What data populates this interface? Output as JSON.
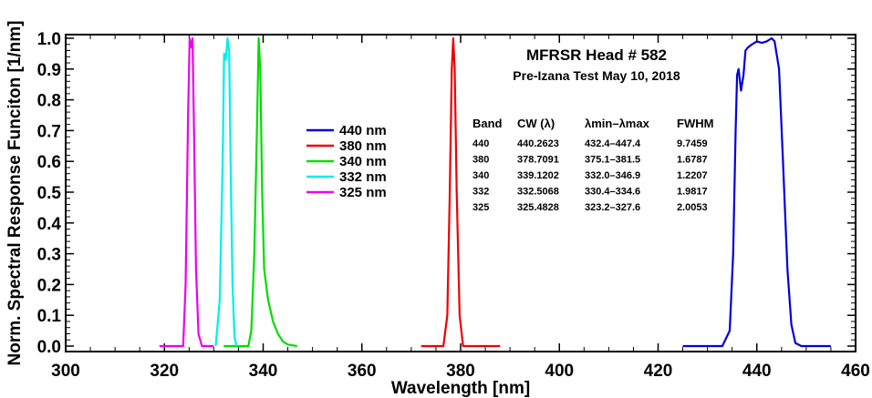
{
  "chart_data": {
    "type": "line",
    "title": "MFRSR Head # 582",
    "subtitle": "Pre-Izana Test May 10, 2018",
    "xlabel": "Wavelength [nm]",
    "ylabel": "Norm. Spectral Response Funciton [1/nm]",
    "xlim": [
      300,
      460
    ],
    "ylim": [
      0,
      1.0
    ],
    "x_ticks": [
      "300",
      "320",
      "340",
      "360",
      "380",
      "400",
      "420",
      "440",
      "460"
    ],
    "y_ticks": [
      "0.0",
      "0.1",
      "0.2",
      "0.3",
      "0.4",
      "0.5",
      "0.6",
      "0.7",
      "0.8",
      "0.9",
      "1.0"
    ],
    "legend_position": "upper-center",
    "series": [
      {
        "name": "440 nm",
        "color": "#0000dd",
        "x": [
          425,
          433,
          434.5,
          435.2,
          435.7,
          436.0,
          436.3,
          436.8,
          437.3,
          437.7,
          438.2,
          439.0,
          440.0,
          441.0,
          442.0,
          443.0,
          443.6,
          444.5,
          445.3,
          446.2,
          447.0,
          447.8,
          449,
          455
        ],
        "y": [
          0.0,
          0.0,
          0.05,
          0.3,
          0.7,
          0.88,
          0.9,
          0.83,
          0.88,
          0.96,
          0.97,
          0.98,
          0.99,
          0.985,
          0.99,
          1.0,
          0.99,
          0.9,
          0.6,
          0.25,
          0.07,
          0.01,
          0.0,
          0.0
        ]
      },
      {
        "name": "380 nm",
        "color": "#ee0000",
        "x": [
          372,
          376.5,
          377.3,
          377.8,
          378.2,
          378.5,
          378.8,
          379.2,
          379.8,
          380.5,
          388
        ],
        "y": [
          0.0,
          0.0,
          0.1,
          0.5,
          0.9,
          1.0,
          0.9,
          0.5,
          0.1,
          0.0,
          0.0
        ]
      },
      {
        "name": "340 nm",
        "color": "#00dd00",
        "x": [
          332,
          337.0,
          337.6,
          338.2,
          338.8,
          339.1,
          339.4,
          339.8,
          340.2,
          341.0,
          342.0,
          343.0,
          344.0,
          345.0,
          346.9
        ],
        "y": [
          0.0,
          0.0,
          0.05,
          0.3,
          0.75,
          1.0,
          0.9,
          0.5,
          0.25,
          0.15,
          0.08,
          0.04,
          0.015,
          0.005,
          0.0
        ]
      },
      {
        "name": "332 nm",
        "color": "#00eeee",
        "x": [
          330.4,
          331.2,
          331.8,
          332.1,
          332.4,
          332.8,
          333.1,
          333.4,
          333.8,
          334.2,
          334.6
        ],
        "y": [
          0.0,
          0.15,
          0.6,
          0.95,
          0.93,
          1.0,
          0.96,
          0.6,
          0.2,
          0.03,
          0.0
        ]
      },
      {
        "name": "325 nm",
        "color": "#ee00ee",
        "x": [
          319,
          323.8,
          324.3,
          324.8,
          325.1,
          325.4,
          325.7,
          326.0,
          326.4,
          326.9,
          327.6,
          330
        ],
        "y": [
          0.0,
          0.0,
          0.2,
          0.75,
          1.0,
          0.97,
          1.0,
          0.7,
          0.25,
          0.04,
          0.0,
          0.0
        ]
      }
    ],
    "table": {
      "headers": [
        "Band",
        "CW (λ)",
        "λmin–λmax",
        "FWHM"
      ],
      "rows": [
        [
          "440",
          "440.2623",
          "432.4–447.4",
          "9.7459"
        ],
        [
          "380",
          "378.7091",
          "375.1–381.5",
          "1.6787"
        ],
        [
          "340",
          "339.1202",
          "332.0–346.9",
          "1.2207"
        ],
        [
          "332",
          "332.5068",
          "330.4–334.6",
          "1.9817"
        ],
        [
          "325",
          "325.4828",
          "323.2–327.6",
          "2.0053"
        ]
      ]
    }
  }
}
